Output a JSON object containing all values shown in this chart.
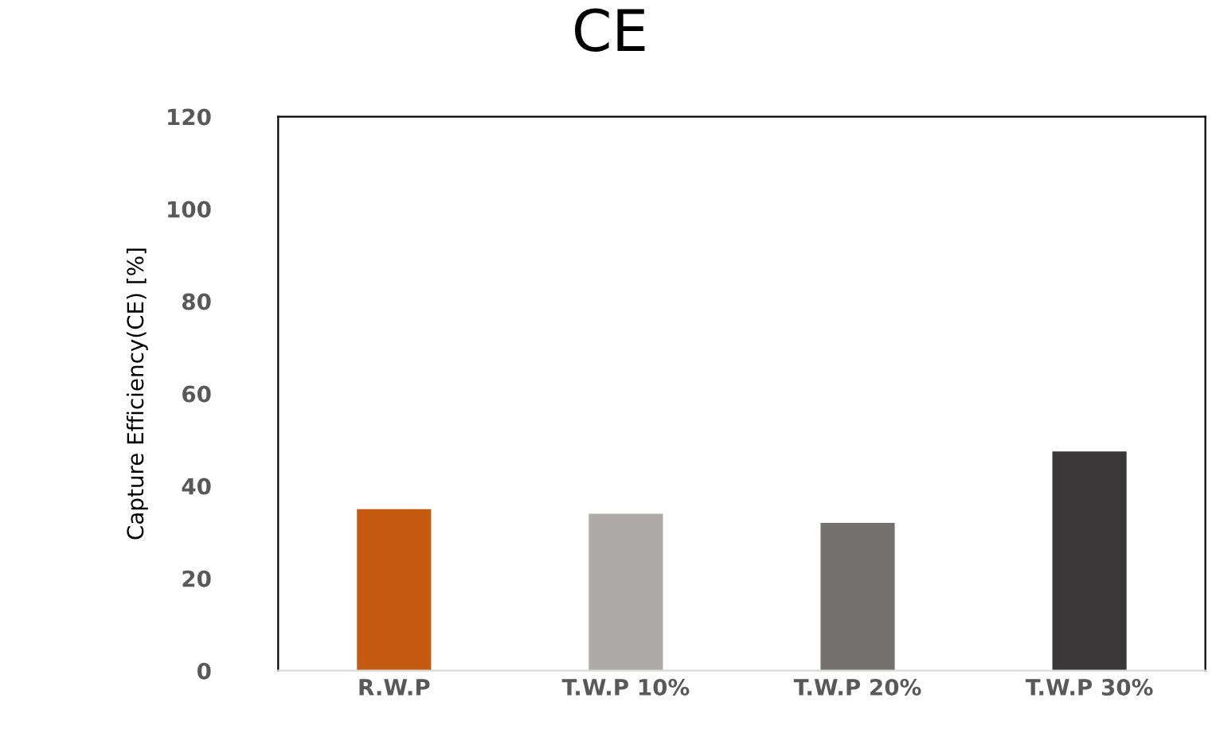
{
  "chart_data": {
    "type": "bar",
    "title": "CE",
    "ylabel": "Capture Efficiency(CE) [%]",
    "categories": [
      "R.W.P",
      "T.W.P 10%",
      "T.W.P 20%",
      "T.W.P 30%"
    ],
    "values": [
      35,
      34,
      32,
      47.5
    ],
    "colors": [
      "#c55a11",
      "#aeaaaa",
      "#767171",
      "#3a3838"
    ],
    "ylim": [
      0,
      120
    ],
    "yticks": [
      0,
      20,
      40,
      60,
      80,
      100,
      120
    ],
    "grid": false
  }
}
